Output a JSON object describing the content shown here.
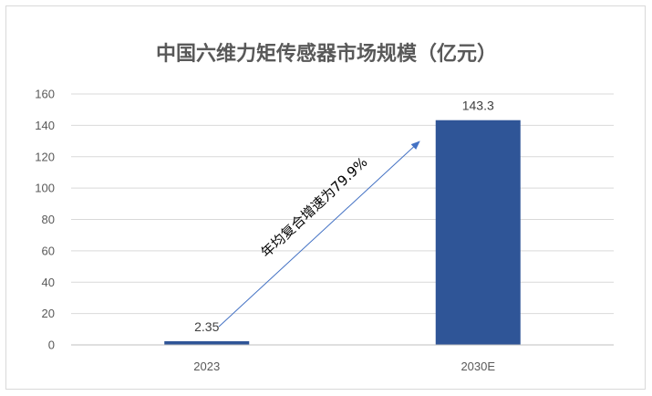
{
  "chart_data": {
    "type": "bar",
    "title": "中国六维力矩传感器市场规模（亿元）",
    "categories": [
      "2023",
      "2030E"
    ],
    "values": [
      2.35,
      143.3
    ],
    "data_labels": [
      "2.35",
      "143.3"
    ],
    "y_ticks": [
      "0",
      "20",
      "40",
      "60",
      "80",
      "100",
      "120",
      "140",
      "160"
    ],
    "ylim": [
      0,
      160
    ],
    "grid": true,
    "legend": "none",
    "annotation": "年均复合增速为79.9%",
    "colors": {
      "bar": "#2F5597",
      "arrow": "#4472C4",
      "grid": "#d9d9d9",
      "text": "#595959"
    }
  }
}
